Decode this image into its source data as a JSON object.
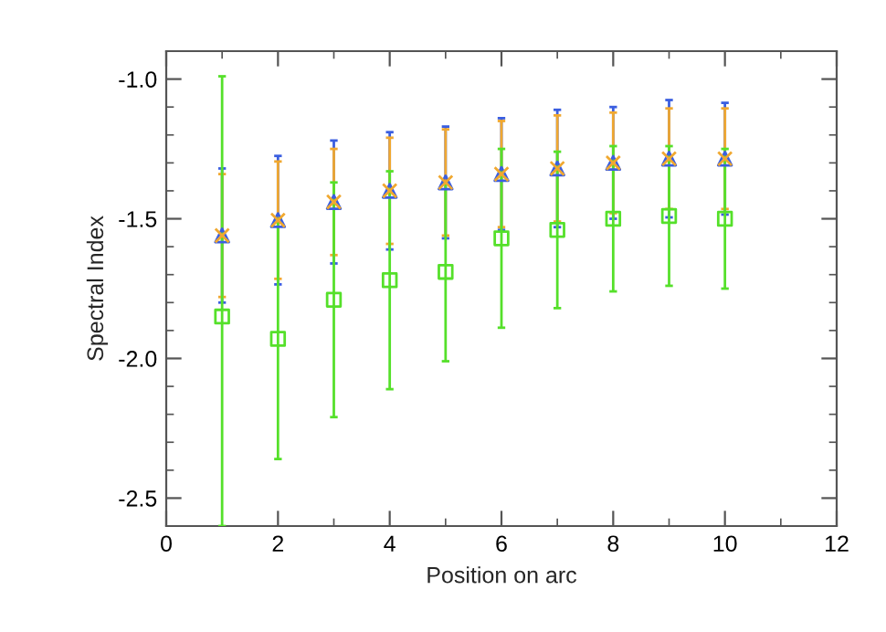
{
  "chart_data": {
    "type": "scatter",
    "xlabel": "Position on arc",
    "ylabel": "Spectral Index",
    "xlim": [
      0,
      12
    ],
    "xticks": [
      0,
      2,
      4,
      6,
      8,
      10,
      12
    ],
    "ylim": [
      -2.6,
      -0.9
    ],
    "yticks": [
      {
        "value": -2.5,
        "label": "-2.5"
      },
      {
        "value": -2.0,
        "label": "-2.0"
      },
      {
        "value": -1.5,
        "label": "-1.5"
      },
      {
        "value": -1.0,
        "label": "-1.0"
      }
    ],
    "grid": false,
    "legend": false,
    "series": [
      {
        "color": "#3a5ee0",
        "marker": "triangle",
        "x": [
          1,
          2,
          3,
          4,
          5,
          6,
          7,
          8,
          9,
          10
        ],
        "values": [
          -1.56,
          -1.505,
          -1.44,
          -1.4,
          -1.37,
          -1.34,
          -1.32,
          -1.3,
          -1.285,
          -1.285
        ],
        "errors": [
          0.24,
          0.23,
          0.22,
          0.21,
          0.2,
          0.2,
          0.21,
          0.2,
          0.21,
          0.2
        ]
      },
      {
        "color": "#f0a830",
        "marker": "cross",
        "x": [
          1,
          2,
          3,
          4,
          5,
          6,
          7,
          8,
          9,
          10
        ],
        "values": [
          -1.56,
          -1.505,
          -1.44,
          -1.4,
          -1.37,
          -1.34,
          -1.32,
          -1.3,
          -1.285,
          -1.285
        ],
        "errors": [
          0.22,
          0.21,
          0.19,
          0.19,
          0.19,
          0.19,
          0.19,
          0.18,
          0.18,
          0.18
        ]
      },
      {
        "color": "#55e02a",
        "marker": "square",
        "x": [
          1,
          2,
          3,
          4,
          5,
          6,
          7,
          8,
          9,
          10
        ],
        "values": [
          -1.85,
          -1.93,
          -1.79,
          -1.72,
          -1.69,
          -1.57,
          -1.54,
          -1.5,
          -1.49,
          -1.5
        ],
        "errors": [
          [
            -2.6,
            -0.99
          ],
          0.43,
          0.42,
          0.39,
          0.32,
          0.32,
          0.28,
          0.26,
          0.25,
          0.25
        ]
      }
    ]
  }
}
